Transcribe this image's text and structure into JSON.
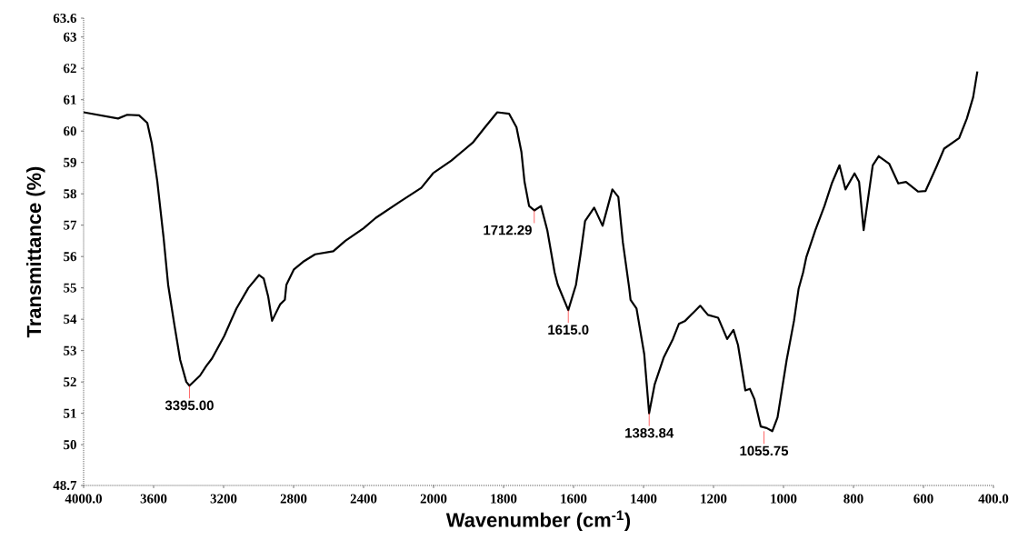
{
  "chart_data": [
    {
      "type": "line",
      "ylabel": "Transmittance (%)",
      "color": "#000000",
      "line_style": "solid",
      "x": [
        4000,
        3803,
        3751,
        3683,
        3636,
        3610,
        3579,
        3543,
        3517,
        3482,
        3448,
        3413,
        3395,
        3335,
        3300,
        3266,
        3196,
        3127,
        3058,
        2997,
        2971,
        2945,
        2923,
        2902,
        2876,
        2850,
        2841,
        2798,
        2746,
        2677,
        2573,
        2504,
        2400,
        2331,
        2192,
        2070,
        2000
      ],
      "values": [
        60.6,
        60.4,
        60.52,
        60.5,
        60.26,
        59.6,
        58.4,
        56.6,
        55.1,
        53.85,
        52.7,
        52.0,
        51.88,
        52.2,
        52.5,
        52.75,
        53.47,
        54.34,
        55.0,
        55.41,
        55.3,
        54.72,
        53.95,
        54.19,
        54.48,
        54.62,
        55.1,
        55.59,
        55.83,
        56.07,
        56.17,
        56.5,
        56.9,
        57.23,
        57.75,
        58.19,
        58.67
      ],
      "xlim": [
        4000,
        2000
      ],
      "ylim": [
        48.7,
        63.6
      ],
      "xticks": [
        {
          "value": 4000,
          "label": "4000.0"
        },
        3600,
        3200,
        2800,
        2400
      ],
      "yticks": [
        48.7,
        50,
        51,
        52,
        53,
        54,
        55,
        56,
        57,
        58,
        59,
        60,
        61,
        62,
        63,
        63.6
      ],
      "annotations": [
        {
          "text": "3395.00",
          "x": 3395,
          "y": 51.88
        }
      ]
    },
    {
      "type": "line",
      "xlabel": "Wavenumber (cm$^{-1}$)",
      "color": "#000000",
      "line_style": "solid",
      "tick_labels": "x",
      "x": [
        2000,
        1949,
        1888,
        1853,
        1818,
        1784,
        1763,
        1749,
        1740,
        1727,
        1712,
        1693,
        1675,
        1654,
        1645,
        1615,
        1593,
        1580,
        1567,
        1541,
        1517,
        1489,
        1472,
        1459,
        1441,
        1437,
        1420,
        1398,
        1384,
        1368,
        1342,
        1316,
        1299,
        1281,
        1264,
        1238,
        1216,
        1187,
        1161,
        1143,
        1130,
        1109,
        1096,
        1083,
        1065,
        1048,
        1032,
        1017,
        991,
        970,
        957,
        944,
        935,
        909,
        883,
        862,
        840,
        823,
        797,
        784,
        771,
        745,
        728,
        698,
        672,
        650,
        615,
        594,
        563,
        541,
        498,
        476,
        458,
        446
      ],
      "values": [
        58.67,
        59.06,
        59.63,
        60.12,
        60.6,
        60.55,
        60.12,
        59.34,
        58.38,
        57.61,
        57.47,
        57.61,
        56.84,
        55.49,
        55.1,
        54.29,
        55.1,
        56.07,
        57.13,
        57.56,
        56.98,
        58.14,
        57.9,
        56.45,
        55.0,
        54.62,
        54.34,
        52.89,
        51.0,
        51.93,
        52.79,
        53.37,
        53.85,
        53.95,
        54.14,
        54.43,
        54.14,
        54.05,
        53.37,
        53.66,
        53.18,
        51.73,
        51.78,
        51.45,
        50.58,
        50.53,
        50.43,
        50.87,
        52.7,
        53.95,
        54.96,
        55.49,
        55.97,
        56.84,
        57.61,
        58.33,
        58.91,
        58.14,
        58.65,
        58.38,
        56.84,
        58.91,
        59.2,
        58.96,
        58.33,
        58.38,
        58.07,
        58.09,
        58.86,
        59.44,
        59.78,
        60.4,
        61.08,
        61.9
      ],
      "xlim": [
        2000,
        400
      ],
      "ylim": [
        48.7,
        63.6
      ],
      "xticks": [
        2000,
        1800,
        1600,
        1400,
        1200,
        1000,
        800,
        600,
        {
          "value": 400,
          "label": "400.0"
        }
      ],
      "annotations": [
        {
          "text": "1712.29",
          "x": 1712.29,
          "y": 57.47
        },
        {
          "text": "1615.0",
          "x": 1615.0,
          "y": 54.29
        },
        {
          "text": "1383.84",
          "x": 1383.84,
          "y": 51.0
        },
        {
          "text": "1055.75",
          "x": 1055.75,
          "y": 50.43
        }
      ]
    }
  ]
}
